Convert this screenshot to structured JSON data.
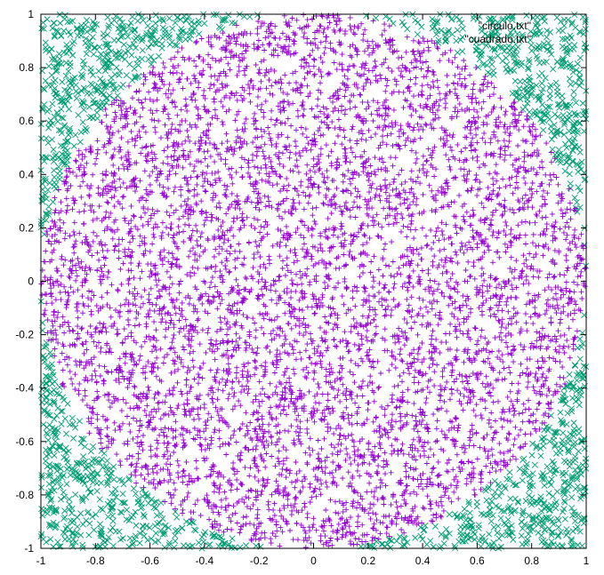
{
  "chart_data": {
    "type": "scatter",
    "title": "",
    "xlabel": "",
    "ylabel": "",
    "xlim": [
      -1,
      1
    ],
    "ylim": [
      -1,
      1
    ],
    "x_ticks": [
      "-1",
      "-0.8",
      "-0.6",
      "-0.4",
      "-0.2",
      "0",
      "0.2",
      "0.4",
      "0.6",
      "0.8",
      "1"
    ],
    "y_ticks": [
      "1",
      "0.8",
      "0.6",
      "0.4",
      "0.2",
      "0",
      "-0.2",
      "-0.4",
      "-0.6",
      "-0.8",
      "-1"
    ],
    "grid": false,
    "legend_position": "top-right",
    "series": [
      {
        "name": "\"circulo.txt\"",
        "marker": "plus",
        "color": "#9400d3",
        "region": "points with x^2 + y^2 <= 1",
        "values_x": [
          0.12,
          -0.45,
          0.63,
          -0.71,
          0.05,
          0.33,
          -0.22,
          0.81,
          -0.58,
          0.27,
          -0.09,
          0.44,
          -0.36,
          0.68,
          -0.84,
          0.16,
          0.52,
          -0.63,
          0.01,
          -0.28
        ],
        "values_y": [
          0.34,
          -0.18,
          0.52,
          0.29,
          -0.77,
          0.06,
          0.61,
          -0.41,
          -0.55,
          -0.26,
          0.88,
          0.73,
          0.12,
          -0.09,
          -0.37,
          -0.49,
          0.21,
          0.67,
          0.02,
          -0.83
        ]
      },
      {
        "name": "\"cuadrado.txt\"",
        "marker": "cross",
        "color": "#009e73",
        "region": "points with x^2 + y^2 > 1",
        "values_x": [
          0.93,
          -0.95,
          0.88,
          -0.82,
          0.97,
          -0.91,
          0.79,
          -0.86,
          0.72,
          -0.76,
          0.99,
          -0.98
        ],
        "values_y": [
          0.86,
          0.92,
          -0.91,
          -0.79,
          0.41,
          0.47,
          0.83,
          -0.68,
          -0.95,
          0.88,
          -0.35,
          -0.23
        ]
      }
    ]
  }
}
